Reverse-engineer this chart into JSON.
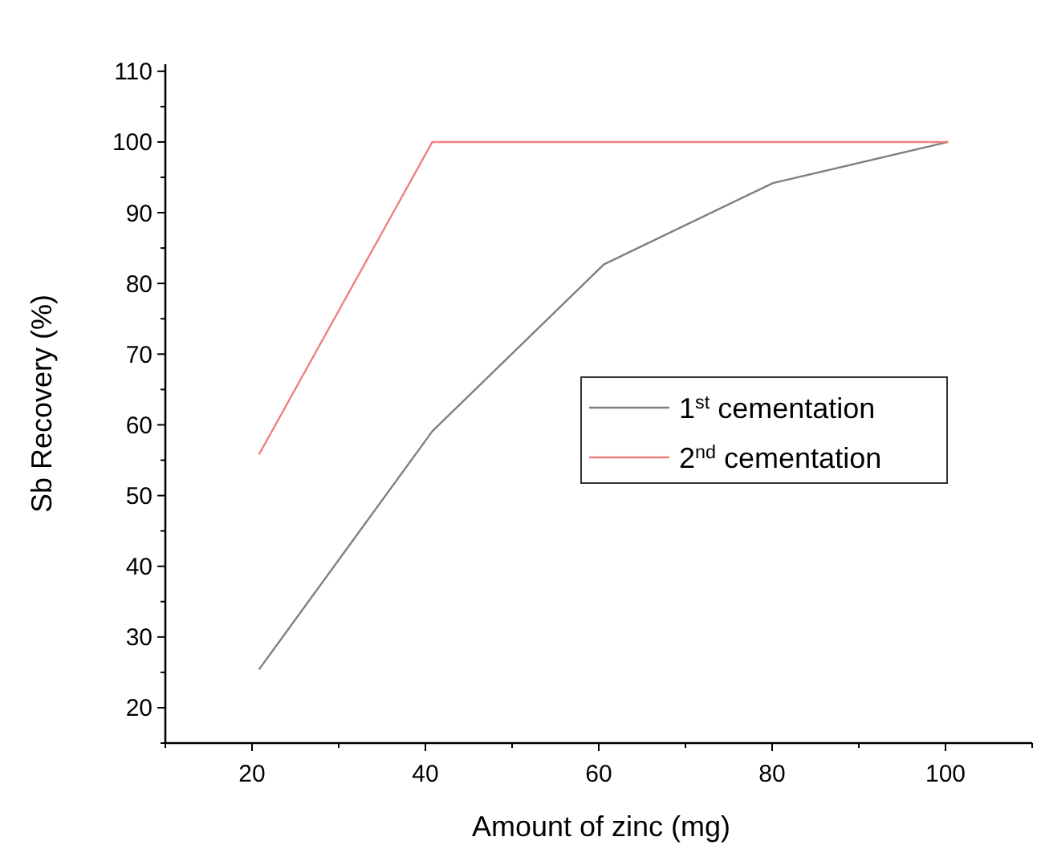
{
  "chart_data": {
    "type": "line",
    "xlabel": "Amount of zinc (mg)",
    "ylabel": "Sb Recovery (%)",
    "xlim": [
      10,
      110
    ],
    "ylim": [
      15,
      111
    ],
    "xticks": [
      {
        "value": 10,
        "label": null
      },
      20,
      {
        "value": 30,
        "label": null
      },
      40,
      {
        "value": 50,
        "label": null
      },
      60,
      {
        "value": 70,
        "label": null
      },
      80,
      {
        "value": 90,
        "label": null
      },
      100,
      {
        "value": 110,
        "label": null
      }
    ],
    "yticks": [
      {
        "value": 15,
        "label": null
      },
      20,
      {
        "value": 25,
        "label": null
      },
      30,
      {
        "value": 35,
        "label": null
      },
      40,
      {
        "value": 45,
        "label": null
      },
      50,
      {
        "value": 55,
        "label": null
      },
      60,
      {
        "value": 65,
        "label": null
      },
      70,
      {
        "value": 75,
        "label": null
      },
      80,
      {
        "value": 85,
        "label": null
      },
      90,
      {
        "value": 95,
        "label": null
      },
      100,
      {
        "value": 105,
        "label": null
      },
      110
    ],
    "x": [
      20.8,
      40.8,
      60.6,
      80.1,
      100.3
    ],
    "series": [
      {
        "name": "1$^{st}$ cementation",
        "color": "#7f7f7f",
        "values": [
          25.4,
          59.1,
          82.7,
          94.2,
          100
        ]
      },
      {
        "name": "2$^{nd}$ cementation",
        "color": "#f08080",
        "values": [
          55.8,
          100,
          100,
          100,
          100
        ]
      }
    ],
    "legend": "right",
    "grid": false,
    "marker": "none",
    "line_style": "solid"
  }
}
